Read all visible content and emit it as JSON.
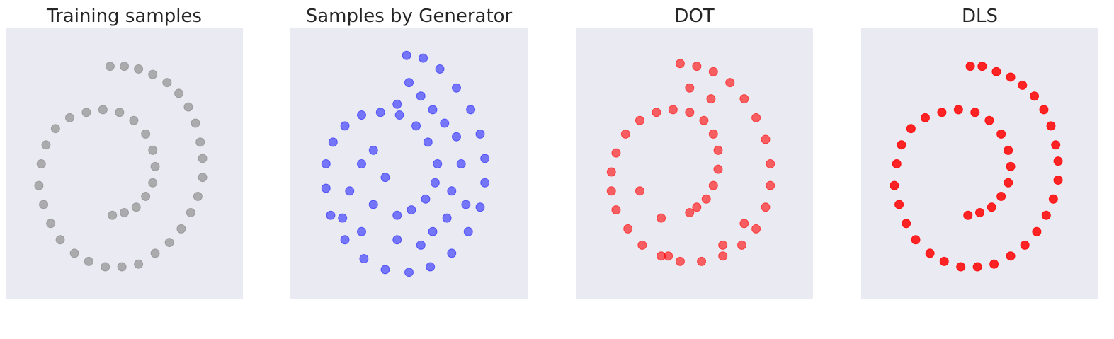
{
  "chart_data": [
    {
      "type": "scatter",
      "title": "Training samples",
      "color": "#808080",
      "opacity": 0.6,
      "xlim": [
        0,
        100
      ],
      "ylim": [
        0,
        100
      ],
      "x": [
        44,
        50,
        56,
        62,
        68,
        73,
        77,
        80,
        82,
        83,
        83,
        81,
        78,
        74,
        69,
        63,
        56,
        49,
        42,
        35,
        29,
        23,
        19,
        16,
        14,
        15,
        17,
        21,
        27,
        34,
        41,
        48,
        54,
        59,
        62,
        63,
        62,
        59,
        55,
        50,
        45
      ],
      "values": [
        86,
        86,
        85,
        83,
        80,
        76,
        71,
        65,
        58,
        52,
        45,
        38,
        32,
        26,
        21,
        17,
        13,
        12,
        12,
        14,
        17,
        22,
        28,
        35,
        42,
        50,
        57,
        63,
        67,
        69,
        70,
        69,
        66,
        61,
        55,
        49,
        43,
        38,
        34,
        32,
        31
      ]
    },
    {
      "type": "scatter",
      "title": "Samples by Generator",
      "color": "#0000ff",
      "opacity": 0.5,
      "xlim": [
        0,
        100
      ],
      "ylim": [
        0,
        100
      ],
      "x": [
        49,
        56,
        63,
        70,
        76,
        80,
        82,
        82,
        80,
        75,
        68,
        59,
        50,
        40,
        31,
        23,
        17,
        15,
        15,
        18,
        23,
        30,
        38,
        46,
        53,
        58,
        62,
        61,
        57,
        51,
        45,
        50,
        45,
        55,
        60,
        65,
        70,
        72,
        68,
        74,
        66,
        30,
        25,
        35,
        40,
        30,
        45,
        55,
        60,
        35,
        22
      ],
      "values": [
        90,
        89,
        85,
        78,
        70,
        61,
        52,
        43,
        34,
        25,
        17,
        12,
        10,
        11,
        15,
        22,
        31,
        41,
        50,
        58,
        64,
        68,
        69,
        68,
        64,
        58,
        50,
        43,
        37,
        33,
        31,
        80,
        72,
        75,
        70,
        65,
        60,
        50,
        40,
        35,
        30,
        50,
        40,
        35,
        45,
        25,
        22,
        20,
        25,
        55,
        30
      ]
    },
    {
      "type": "scatter",
      "title": "DOT",
      "color": "#ff0000",
      "opacity": 0.6,
      "xlim": [
        0,
        100
      ],
      "ylim": [
        0,
        100
      ],
      "x": [
        44,
        51,
        58,
        65,
        71,
        76,
        80,
        82,
        82,
        80,
        76,
        70,
        62,
        53,
        44,
        36,
        28,
        22,
        17,
        15,
        15,
        17,
        21,
        27,
        34,
        41,
        48,
        54,
        58,
        60,
        60,
        58,
        55,
        51,
        48,
        48,
        57,
        27,
        36,
        39,
        62,
        71
      ],
      "values": [
        87,
        86,
        84,
        80,
        74,
        67,
        59,
        50,
        42,
        34,
        26,
        20,
        16,
        14,
        14,
        16,
        20,
        26,
        33,
        40,
        47,
        54,
        61,
        66,
        69,
        70,
        69,
        66,
        61,
        55,
        48,
        42,
        37,
        34,
        32,
        78,
        74,
        40,
        30,
        16,
        20,
        28
      ]
    },
    {
      "type": "scatter",
      "title": "DLS",
      "color": "#ff0000",
      "opacity": 0.85,
      "xlim": [
        0,
        100
      ],
      "ylim": [
        0,
        100
      ],
      "x": [
        46,
        51,
        57,
        63,
        68,
        73,
        77,
        80,
        82,
        83,
        83,
        81,
        78,
        74,
        69,
        63,
        56,
        49,
        42,
        35,
        29,
        23,
        19,
        16,
        14,
        15,
        17,
        21,
        27,
        34,
        41,
        48,
        54,
        59,
        62,
        63,
        62,
        59,
        55,
        50,
        45
      ],
      "values": [
        86,
        86,
        84,
        82,
        79,
        75,
        70,
        64,
        57,
        51,
        44,
        37,
        31,
        25,
        20,
        16,
        13,
        12,
        12,
        14,
        17,
        22,
        28,
        35,
        42,
        50,
        57,
        63,
        67,
        69,
        70,
        69,
        66,
        61,
        55,
        49,
        43,
        38,
        34,
        32,
        31
      ]
    }
  ]
}
